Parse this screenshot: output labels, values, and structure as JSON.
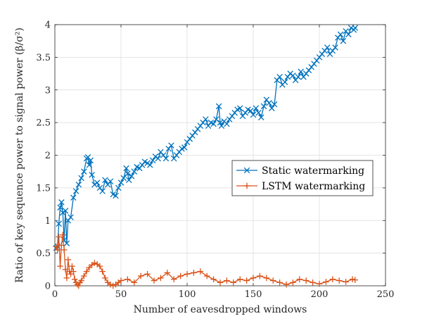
{
  "chart_data": {
    "type": "line",
    "xlabel": "Number of eavesdropped windows",
    "ylabel": "Ratio of key sequence power to signal power (β/σ²)",
    "xlim": [
      0,
      250
    ],
    "ylim": [
      0,
      4
    ],
    "xticks": [
      "0",
      "50",
      "100",
      "150",
      "200",
      "250"
    ],
    "yticks": [
      "0",
      "0.5",
      "1",
      "1.5",
      "2",
      "2.5",
      "3",
      "3.5",
      "4"
    ],
    "grid": true,
    "legend_position": "center-right",
    "series": [
      {
        "name": "Static watermarking",
        "color": "#0072BD",
        "marker": "x",
        "x": [
          1,
          2,
          3,
          4,
          5,
          6,
          7,
          8,
          9,
          10,
          12,
          14,
          16,
          18,
          20,
          22,
          24,
          25,
          26,
          27,
          28,
          30,
          32,
          34,
          36,
          38,
          40,
          42,
          44,
          46,
          48,
          50,
          52,
          54,
          55,
          56,
          58,
          60,
          62,
          64,
          66,
          68,
          70,
          72,
          74,
          76,
          78,
          80,
          82,
          84,
          86,
          88,
          90,
          92,
          94,
          96,
          98,
          100,
          102,
          104,
          106,
          108,
          110,
          112,
          114,
          116,
          118,
          120,
          122,
          124,
          125,
          126,
          128,
          130,
          132,
          134,
          136,
          138,
          140,
          142,
          144,
          146,
          148,
          150,
          152,
          154,
          156,
          158,
          160,
          162,
          164,
          166,
          168,
          170,
          172,
          174,
          176,
          178,
          180,
          182,
          184,
          186,
          188,
          190,
          192,
          194,
          196,
          198,
          200,
          202,
          204,
          206,
          208,
          210,
          212,
          214,
          216,
          218,
          220,
          222,
          224,
          226,
          227
        ],
        "values": [
          0.58,
          0.6,
          0.95,
          1.2,
          1.28,
          1.12,
          0.7,
          1.15,
          0.65,
          1.0,
          1.05,
          1.35,
          1.45,
          1.55,
          1.65,
          1.75,
          1.95,
          1.97,
          1.85,
          1.92,
          1.7,
          1.55,
          1.58,
          1.5,
          1.45,
          1.62,
          1.55,
          1.6,
          1.4,
          1.38,
          1.5,
          1.58,
          1.65,
          1.8,
          1.72,
          1.62,
          1.68,
          1.75,
          1.82,
          1.8,
          1.85,
          1.9,
          1.88,
          1.85,
          1.92,
          1.98,
          1.95,
          2.05,
          2.0,
          1.95,
          2.1,
          2.15,
          1.95,
          2.0,
          2.05,
          2.1,
          2.12,
          2.2,
          2.25,
          2.3,
          2.35,
          2.4,
          2.45,
          2.5,
          2.55,
          2.45,
          2.5,
          2.48,
          2.55,
          2.75,
          2.5,
          2.45,
          2.52,
          2.48,
          2.55,
          2.6,
          2.65,
          2.7,
          2.72,
          2.6,
          2.65,
          2.7,
          2.68,
          2.62,
          2.72,
          2.65,
          2.58,
          2.75,
          2.85,
          2.8,
          2.72,
          2.78,
          3.15,
          3.2,
          3.08,
          3.12,
          3.2,
          3.25,
          3.22,
          3.15,
          3.2,
          3.28,
          3.2,
          3.25,
          3.3,
          3.35,
          3.4,
          3.45,
          3.5,
          3.55,
          3.6,
          3.65,
          3.55,
          3.6,
          3.65,
          3.8,
          3.85,
          3.75,
          3.9,
          3.85,
          3.95,
          3.92,
          3.95
        ]
      },
      {
        "name": "LSTM watermarking",
        "color": "#D95319",
        "marker": "+",
        "x": [
          1,
          2,
          3,
          4,
          5,
          6,
          7,
          8,
          9,
          10,
          11,
          12,
          13,
          14,
          15,
          16,
          17,
          18,
          19,
          20,
          22,
          24,
          26,
          28,
          30,
          32,
          34,
          36,
          38,
          40,
          42,
          44,
          46,
          48,
          50,
          55,
          60,
          65,
          70,
          75,
          80,
          85,
          90,
          95,
          100,
          105,
          110,
          115,
          120,
          125,
          130,
          135,
          140,
          145,
          150,
          155,
          160,
          165,
          170,
          175,
          180,
          185,
          190,
          195,
          200,
          205,
          210,
          215,
          220,
          225,
          227
        ],
        "values": [
          0.6,
          0.55,
          0.75,
          0.3,
          0.62,
          0.78,
          0.55,
          0.25,
          0.12,
          0.4,
          0.22,
          0.18,
          0.3,
          0.22,
          0.1,
          0.05,
          0.02,
          0.0,
          0.05,
          0.08,
          0.15,
          0.22,
          0.28,
          0.32,
          0.35,
          0.33,
          0.3,
          0.22,
          0.12,
          0.05,
          0.02,
          0.0,
          0.02,
          0.05,
          0.08,
          0.1,
          0.05,
          0.15,
          0.18,
          0.08,
          0.12,
          0.2,
          0.1,
          0.15,
          0.18,
          0.2,
          0.22,
          0.15,
          0.1,
          0.05,
          0.08,
          0.05,
          0.1,
          0.08,
          0.12,
          0.15,
          0.12,
          0.08,
          0.05,
          0.02,
          0.05,
          0.1,
          0.08,
          0.05,
          0.03,
          0.06,
          0.1,
          0.08,
          0.06,
          0.1,
          0.09
        ]
      }
    ]
  }
}
